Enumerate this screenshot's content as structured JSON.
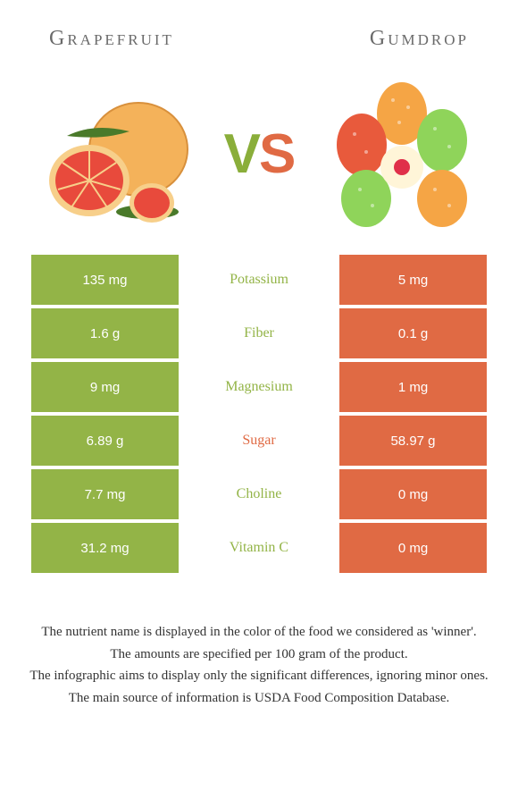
{
  "header": {
    "left_title": "Grapefruit",
    "right_title": "Gumdrop"
  },
  "vs": {
    "v": "V",
    "s": "S"
  },
  "colors": {
    "left_cell": "#93b447",
    "right_cell": "#e06a44",
    "left_winner_text": "#93b447",
    "right_winner_text": "#e06a44",
    "row_gap_bg": "#ffffff"
  },
  "comparison": {
    "type": "table",
    "rows": [
      {
        "nutrient": "Potassium",
        "left": "135 mg",
        "right": "5 mg",
        "winner": "left"
      },
      {
        "nutrient": "Fiber",
        "left": "1.6 g",
        "right": "0.1 g",
        "winner": "left"
      },
      {
        "nutrient": "Magnesium",
        "left": "9 mg",
        "right": "1 mg",
        "winner": "left"
      },
      {
        "nutrient": "Sugar",
        "left": "6.89 g",
        "right": "58.97 g",
        "winner": "right"
      },
      {
        "nutrient": "Choline",
        "left": "7.7 mg",
        "right": "0 mg",
        "winner": "left"
      },
      {
        "nutrient": "Vitamin C",
        "left": "31.2 mg",
        "right": "0 mg",
        "winner": "left"
      }
    ]
  },
  "footnotes": [
    "The nutrient name is displayed in the color of the food we considered as 'winner'.",
    "The amounts are specified per 100 gram of the product.",
    "The infographic aims to display only the significant differences, ignoring minor ones.",
    "The main source of information is USDA Food Composition Database."
  ]
}
